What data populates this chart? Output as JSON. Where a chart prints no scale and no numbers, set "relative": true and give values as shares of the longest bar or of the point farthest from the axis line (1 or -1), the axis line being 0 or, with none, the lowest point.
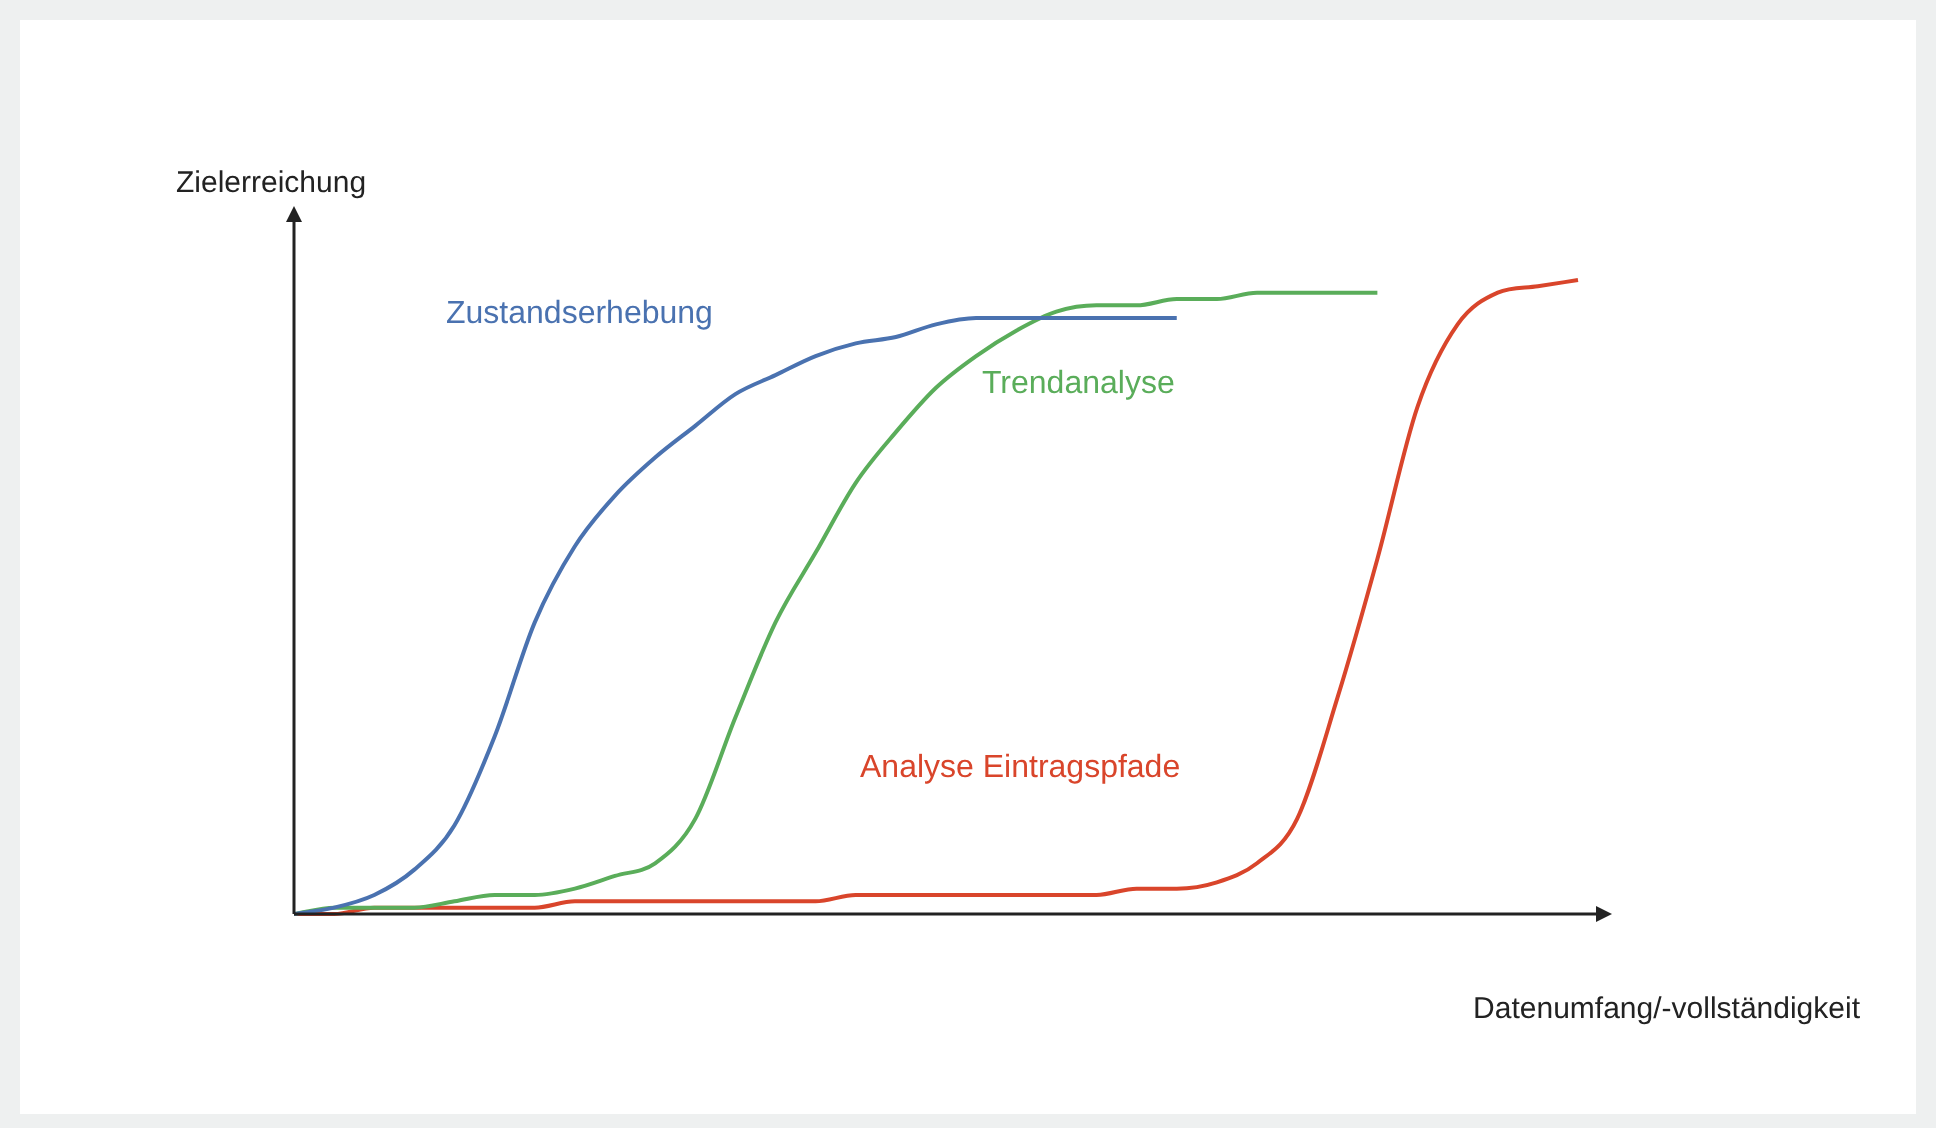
{
  "chart_data": {
    "type": "line",
    "relative": true,
    "xlabel": "Datenumfang/-vollständigkeit",
    "ylabel": "Zielerreichung",
    "categories": [
      null,
      null,
      null,
      null,
      null,
      null,
      null,
      null,
      null,
      null,
      null,
      null,
      null,
      null,
      null,
      null,
      null,
      null,
      null,
      null,
      null,
      null,
      null,
      null,
      null,
      null,
      null,
      null,
      null,
      null,
      null,
      null,
      null
    ],
    "series": [
      {
        "name": "Zustandserhebung",
        "color": "#4a72b0",
        "values": [
          0,
          0.01,
          0.03,
          0.07,
          0.14,
          0.28,
          0.46,
          0.58,
          0.66,
          0.72,
          0.77,
          0.82,
          0.85,
          0.88,
          0.9,
          0.91,
          0.93,
          0.94,
          0.94,
          0.94,
          0.94,
          0.94,
          0.94,
          null,
          null,
          null,
          null,
          null,
          null,
          null,
          null,
          null,
          null
        ]
      },
      {
        "name": "Trendanalyse",
        "color": "#5aad5a",
        "values": [
          0,
          0.01,
          0.01,
          0.01,
          0.02,
          0.03,
          0.03,
          0.04,
          0.06,
          0.08,
          0.15,
          0.31,
          0.46,
          0.57,
          0.68,
          0.76,
          0.83,
          0.88,
          0.92,
          0.95,
          0.96,
          0.96,
          0.97,
          0.97,
          0.98,
          0.98,
          0.98,
          0.98,
          null,
          null,
          null,
          null,
          null
        ]
      },
      {
        "name": "Analyse Eintragspfade",
        "color": "#d9452b",
        "values": [
          0,
          0,
          0.01,
          0.01,
          0.01,
          0.01,
          0.01,
          0.02,
          0.02,
          0.02,
          0.02,
          0.02,
          0.02,
          0.02,
          0.03,
          0.03,
          0.03,
          0.03,
          0.03,
          0.03,
          0.03,
          0.04,
          0.04,
          0.05,
          0.08,
          0.15,
          0.34,
          0.56,
          0.8,
          0.93,
          0.98,
          0.99,
          1
        ]
      }
    ],
    "grid": false,
    "legend": false,
    "marker": "none",
    "line_style": "solid"
  }
}
